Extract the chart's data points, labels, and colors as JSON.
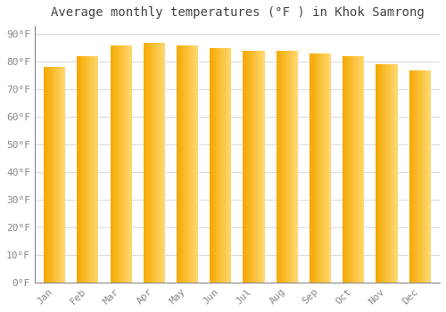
{
  "title": "Average monthly temperatures (°F ) in Khok Samrong",
  "months": [
    "Jan",
    "Feb",
    "Mar",
    "Apr",
    "May",
    "Jun",
    "Jul",
    "Aug",
    "Sep",
    "Oct",
    "Nov",
    "Dec"
  ],
  "values": [
    78,
    82,
    86,
    87,
    86,
    85,
    84,
    84,
    83,
    82,
    79,
    77
  ],
  "bar_color_left": "#F5A800",
  "bar_color_right": "#FFD870",
  "background_color": "#FFFFFF",
  "grid_color": "#DDDDDD",
  "yticks": [
    0,
    10,
    20,
    30,
    40,
    50,
    60,
    70,
    80,
    90
  ],
  "ylim": [
    0,
    93
  ],
  "title_fontsize": 10,
  "tick_fontsize": 8,
  "font_family": "monospace",
  "tick_color": "#888888",
  "figsize": [
    5.0,
    3.5
  ],
  "dpi": 100
}
